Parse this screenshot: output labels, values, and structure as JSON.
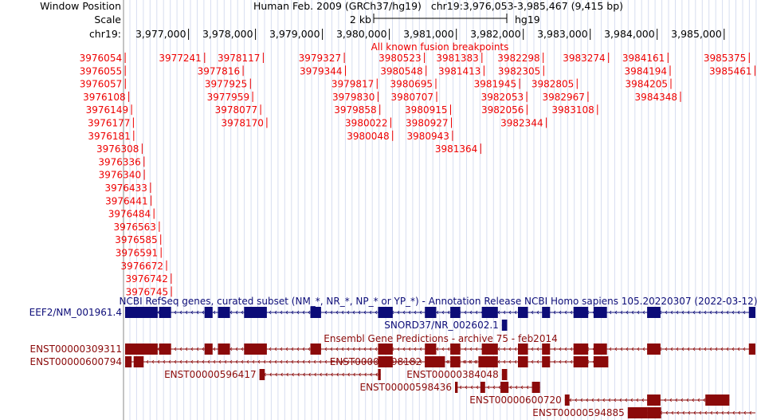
{
  "header": {
    "window_position_label": "Window Position",
    "scale_label": "Scale",
    "chrom_label": "chr19:",
    "position_text": "Human Feb. 2009 (GRCh37/hg19)   chr19:3,976,053-3,985,467 (9,415 bp)",
    "scale_bar_text": "2 kb",
    "assembly": "hg19"
  },
  "ruler": {
    "ticks": [
      {
        "pos": 3977000,
        "label": "3,977,000"
      },
      {
        "pos": 3978000,
        "label": "3,978,000"
      },
      {
        "pos": 3979000,
        "label": "3,979,000"
      },
      {
        "pos": 3980000,
        "label": "3,980,000"
      },
      {
        "pos": 3981000,
        "label": "3,981,000"
      },
      {
        "pos": 3982000,
        "label": "3,982,000"
      },
      {
        "pos": 3983000,
        "label": "3,983,000"
      },
      {
        "pos": 3984000,
        "label": "3,984,000"
      },
      {
        "pos": 3985000,
        "label": "3,985,000"
      }
    ]
  },
  "fusion_track": {
    "title": "All known fusion breakpoints",
    "rows": [
      [
        "3976054",
        "3977241",
        "3978117",
        "3979327",
        "3980523",
        "3981383",
        "3982298",
        "3983274",
        "3984161",
        "3985375"
      ],
      [
        "3976055",
        "3977816",
        "3979344",
        "3980548",
        "3981413",
        "3982305",
        "3984194",
        "3985461"
      ],
      [
        "3976057",
        "3977925",
        "3979817",
        "3980695",
        "3981945",
        "3982805",
        "3984205"
      ],
      [
        "3976108",
        "3977959",
        "3979830",
        "3980707",
        "3982053",
        "3982967",
        "3984348"
      ],
      [
        "3976149",
        "3978077",
        "3979858",
        "3980915",
        "3982056",
        "3983108"
      ],
      [
        "3976177",
        "3978170",
        "3980022",
        "3980927",
        "3982344"
      ],
      [
        "3976181",
        "3980048",
        "3980943"
      ],
      [
        "3976308",
        "3981364"
      ],
      [
        "3976336"
      ],
      [
        "3976340"
      ],
      [
        "3976433"
      ],
      [
        "3976441"
      ],
      [
        "3976484"
      ],
      [
        "3976563"
      ],
      [
        "3976585"
      ],
      [
        "3976591"
      ],
      [
        "3976672"
      ],
      [
        "3976742"
      ],
      [
        "3976745"
      ]
    ]
  },
  "refseq_track": {
    "title": "NCBI RefSeq genes, curated subset (NM_*, NR_*, NP_* or YP_*) - Annotation Release NCBI Homo sapiens 105.20220307 (2022-03-12)",
    "color": "#0c0c78",
    "genes": [
      {
        "name": "EEF2/NM_001961.4",
        "label_side": "left",
        "start": 3976053,
        "end": 3985467,
        "exons": [
          [
            3976053,
            3976540
          ],
          [
            3976560,
            3976740
          ],
          [
            3977240,
            3977360
          ],
          [
            3977440,
            3977620
          ],
          [
            3977830,
            3978170
          ],
          [
            3978820,
            3978980
          ],
          [
            3979830,
            3980050
          ],
          [
            3980530,
            3980700
          ],
          [
            3980910,
            3981060
          ],
          [
            3981380,
            3981620
          ],
          [
            3981920,
            3982070
          ],
          [
            3982280,
            3982400
          ],
          [
            3982750,
            3982970
          ],
          [
            3983050,
            3983250
          ],
          [
            3983850,
            3984050
          ],
          [
            3985370,
            3985467
          ]
        ]
      },
      {
        "name": "SNORD37/NR_002602.1",
        "label_side": "left",
        "start": 3981680,
        "end": 3981760,
        "exons": [
          [
            3981680,
            3981760
          ]
        ]
      }
    ]
  },
  "ensembl_track": {
    "title": "Ensembl Gene Predictions - archive 75 - feb2014",
    "color": "#8b0a0a",
    "genes": [
      {
        "name": "ENST00000309311",
        "label_side": "left",
        "start": 3976053,
        "end": 3985467,
        "exons": [
          [
            3976053,
            3976540
          ],
          [
            3976560,
            3976740
          ],
          [
            3977240,
            3977360
          ],
          [
            3977440,
            3977620
          ],
          [
            3977830,
            3978170
          ],
          [
            3978820,
            3978980
          ],
          [
            3979830,
            3980050
          ],
          [
            3980530,
            3980700
          ],
          [
            3980910,
            3981060
          ],
          [
            3981380,
            3981620
          ],
          [
            3981920,
            3982070
          ],
          [
            3982280,
            3982400
          ],
          [
            3982750,
            3982970
          ],
          [
            3983050,
            3983250
          ],
          [
            3983850,
            3984050
          ],
          [
            3985370,
            3985467
          ]
        ]
      },
      {
        "name": "ENST00000600794",
        "label_side": "left",
        "start": 3976053,
        "end": 3983270,
        "exons": [
          [
            3976053,
            3976150
          ],
          [
            3976180,
            3976330
          ],
          [
            3979830,
            3980050
          ],
          [
            3980530,
            3980700
          ],
          [
            3980910,
            3981060
          ],
          [
            3981380,
            3981620
          ],
          [
            3981920,
            3982070
          ],
          [
            3982280,
            3982400
          ],
          [
            3982750,
            3982970
          ],
          [
            3983050,
            3983270
          ]
        ]
      },
      {
        "name": "ENST00000596417",
        "label_side": "left",
        "start": 3978060,
        "end": 3979870,
        "exons": [
          [
            3978060,
            3978140
          ],
          [
            3979830,
            3979870
          ]
        ]
      },
      {
        "name": "ENST00000598182",
        "label_side": "left",
        "start": 3980530,
        "end": 3981560,
        "exons": [
          [
            3980530,
            3980830
          ],
          [
            3981330,
            3981560
          ]
        ]
      },
      {
        "name": "ENST00000384048",
        "label_side": "left",
        "start": 3981680,
        "end": 3981760,
        "exons": [
          [
            3981680,
            3981760
          ]
        ]
      },
      {
        "name": "ENST00000598436",
        "label_side": "left",
        "start": 3980980,
        "end": 3982250,
        "exons": [
          [
            3980980,
            3981020
          ],
          [
            3981360,
            3981430
          ],
          [
            3981660,
            3981780
          ],
          [
            3982130,
            3982250
          ]
        ]
      },
      {
        "name": "ENST00000600720",
        "label_side": "left",
        "start": 3982620,
        "end": 3985080,
        "exons": [
          [
            3982620,
            3982690
          ],
          [
            3983850,
            3984050
          ],
          [
            3984720,
            3985080
          ]
        ]
      },
      {
        "name": "ENST00000594885",
        "label_side": "left",
        "start": 3983560,
        "end": 3985467,
        "exons": [
          [
            3983560,
            3983850
          ],
          [
            3983850,
            3984060
          ]
        ]
      }
    ]
  },
  "colors": {
    "fusion": "#ee0000",
    "grid": "#d7def0",
    "refseq": "#0c0c78",
    "ensembl": "#8b0a0a",
    "text": "#000000"
  }
}
